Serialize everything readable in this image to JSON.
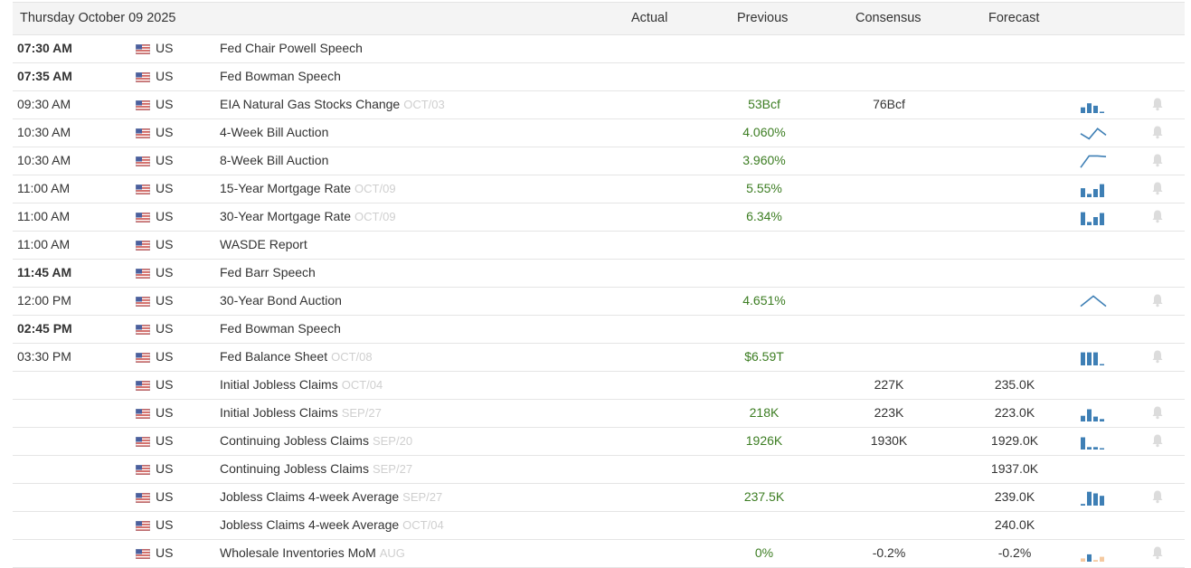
{
  "header": {
    "date": "Thursday October 09 2025",
    "col_actual": "Actual",
    "col_previous": "Previous",
    "col_consensus": "Consensus",
    "col_forecast": "Forecast"
  },
  "colors": {
    "previous_green": "#3c7d22",
    "spark_blue": "#3e7fb5",
    "spark_light_orange": "#f5c9a0",
    "ref_grey": "#cfcfcf",
    "bell_grey": "#dcdcdc"
  },
  "events": [
    {
      "time": "07:30 AM",
      "bold": true,
      "country": "US",
      "event": "Fed Chair Powell Speech",
      "ref": "",
      "actual": "",
      "previous": "",
      "consensus": "",
      "forecast": "",
      "spark": "",
      "bell": false
    },
    {
      "time": "07:35 AM",
      "bold": true,
      "country": "US",
      "event": "Fed Bowman Speech",
      "ref": "",
      "actual": "",
      "previous": "",
      "consensus": "",
      "forecast": "",
      "spark": "",
      "bell": false
    },
    {
      "time": "09:30 AM",
      "bold": false,
      "country": "US",
      "event": "EIA Natural Gas Stocks Change",
      "ref": "OCT/03",
      "actual": "",
      "previous": "53Bcf",
      "consensus": "76Bcf",
      "forecast": "",
      "spark": "bars",
      "spark_values": [
        0.35,
        0.6,
        0.45,
        0.05
      ],
      "bell": true
    },
    {
      "time": "10:30 AM",
      "bold": false,
      "country": "US",
      "event": "4-Week Bill Auction",
      "ref": "",
      "actual": "",
      "previous": "4.060%",
      "consensus": "",
      "forecast": "",
      "spark": "line",
      "spark_values": [
        0.45,
        0.1,
        0.8,
        0.35
      ],
      "bell": true
    },
    {
      "time": "10:30 AM",
      "bold": false,
      "country": "US",
      "event": "8-Week Bill Auction",
      "ref": "",
      "actual": "",
      "previous": "3.960%",
      "consensus": "",
      "forecast": "",
      "spark": "line",
      "spark_values": [
        0.05,
        0.85,
        0.85,
        0.8
      ],
      "bell": true
    },
    {
      "time": "11:00 AM",
      "bold": false,
      "country": "US",
      "event": "15-Year Mortgage Rate",
      "ref": "OCT/09",
      "actual": "",
      "previous": "5.55%",
      "consensus": "",
      "forecast": "",
      "spark": "bars",
      "spark_values": [
        0.55,
        0.2,
        0.5,
        0.8
      ],
      "bell": true
    },
    {
      "time": "11:00 AM",
      "bold": false,
      "country": "US",
      "event": "30-Year Mortgage Rate",
      "ref": "OCT/09",
      "actual": "",
      "previous": "6.34%",
      "consensus": "",
      "forecast": "",
      "spark": "bars",
      "spark_values": [
        0.8,
        0.2,
        0.5,
        0.75
      ],
      "bell": true
    },
    {
      "time": "11:00 AM",
      "bold": false,
      "country": "US",
      "event": "WASDE Report",
      "ref": "",
      "actual": "",
      "previous": "",
      "consensus": "",
      "forecast": "",
      "spark": "",
      "bell": false
    },
    {
      "time": "11:45 AM",
      "bold": true,
      "country": "US",
      "event": "Fed Barr Speech",
      "ref": "",
      "actual": "",
      "previous": "",
      "consensus": "",
      "forecast": "",
      "spark": "",
      "bell": false
    },
    {
      "time": "12:00 PM",
      "bold": false,
      "country": "US",
      "event": "30-Year Bond Auction",
      "ref": "",
      "actual": "",
      "previous": "4.651%",
      "consensus": "",
      "forecast": "",
      "spark": "line",
      "spark_values": [
        0.15,
        0.85,
        0.15
      ],
      "bell": true
    },
    {
      "time": "02:45 PM",
      "bold": true,
      "country": "US",
      "event": "Fed Bowman Speech",
      "ref": "",
      "actual": "",
      "previous": "",
      "consensus": "",
      "forecast": "",
      "spark": "",
      "bell": false
    },
    {
      "time": "03:30 PM",
      "bold": false,
      "country": "US",
      "event": "Fed Balance Sheet",
      "ref": "OCT/08",
      "actual": "",
      "previous": "$6.59T",
      "consensus": "",
      "forecast": "",
      "spark": "bars",
      "spark_values": [
        0.8,
        0.8,
        0.8,
        0.05
      ],
      "bell": true
    },
    {
      "time": "",
      "bold": false,
      "country": "US",
      "event": "Initial Jobless Claims",
      "ref": "OCT/04",
      "actual": "",
      "previous": "",
      "consensus": "227K",
      "forecast": "235.0K",
      "spark": "",
      "bell": false
    },
    {
      "time": "",
      "bold": false,
      "country": "US",
      "event": "Initial Jobless Claims",
      "ref": "SEP/27",
      "actual": "",
      "previous": "218K",
      "consensus": "223K",
      "forecast": "223.0K",
      "spark": "bars",
      "spark_values": [
        0.35,
        0.75,
        0.3,
        0.15
      ],
      "bell": true
    },
    {
      "time": "",
      "bold": false,
      "country": "US",
      "event": "Continuing Jobless Claims",
      "ref": "SEP/20",
      "actual": "",
      "previous": "1926K",
      "consensus": "1930K",
      "forecast": "1929.0K",
      "spark": "bars",
      "spark_values": [
        0.75,
        0.15,
        0.15,
        0.05
      ],
      "bell": true
    },
    {
      "time": "",
      "bold": false,
      "country": "US",
      "event": "Continuing Jobless Claims",
      "ref": "SEP/27",
      "actual": "",
      "previous": "",
      "consensus": "",
      "forecast": "1937.0K",
      "spark": "",
      "bell": false
    },
    {
      "time": "",
      "bold": false,
      "country": "US",
      "event": "Jobless Claims 4-week Average",
      "ref": "SEP/27",
      "actual": "",
      "previous": "237.5K",
      "consensus": "",
      "forecast": "239.0K",
      "spark": "bars",
      "spark_values": [
        0.1,
        0.85,
        0.75,
        0.6
      ],
      "bell": true
    },
    {
      "time": "",
      "bold": false,
      "country": "US",
      "event": "Jobless Claims 4-week Average",
      "ref": "OCT/04",
      "actual": "",
      "previous": "",
      "consensus": "",
      "forecast": "240.0K",
      "spark": "",
      "bell": false
    },
    {
      "time": "",
      "bold": false,
      "country": "US",
      "event": "Wholesale Inventories MoM",
      "ref": "AUG",
      "actual": "",
      "previous": "0%",
      "consensus": "-0.2%",
      "forecast": "-0.2%",
      "spark": "bars-light",
      "spark_values": [
        0.2,
        0.45,
        0.1,
        0.3
      ],
      "bell": true
    }
  ]
}
